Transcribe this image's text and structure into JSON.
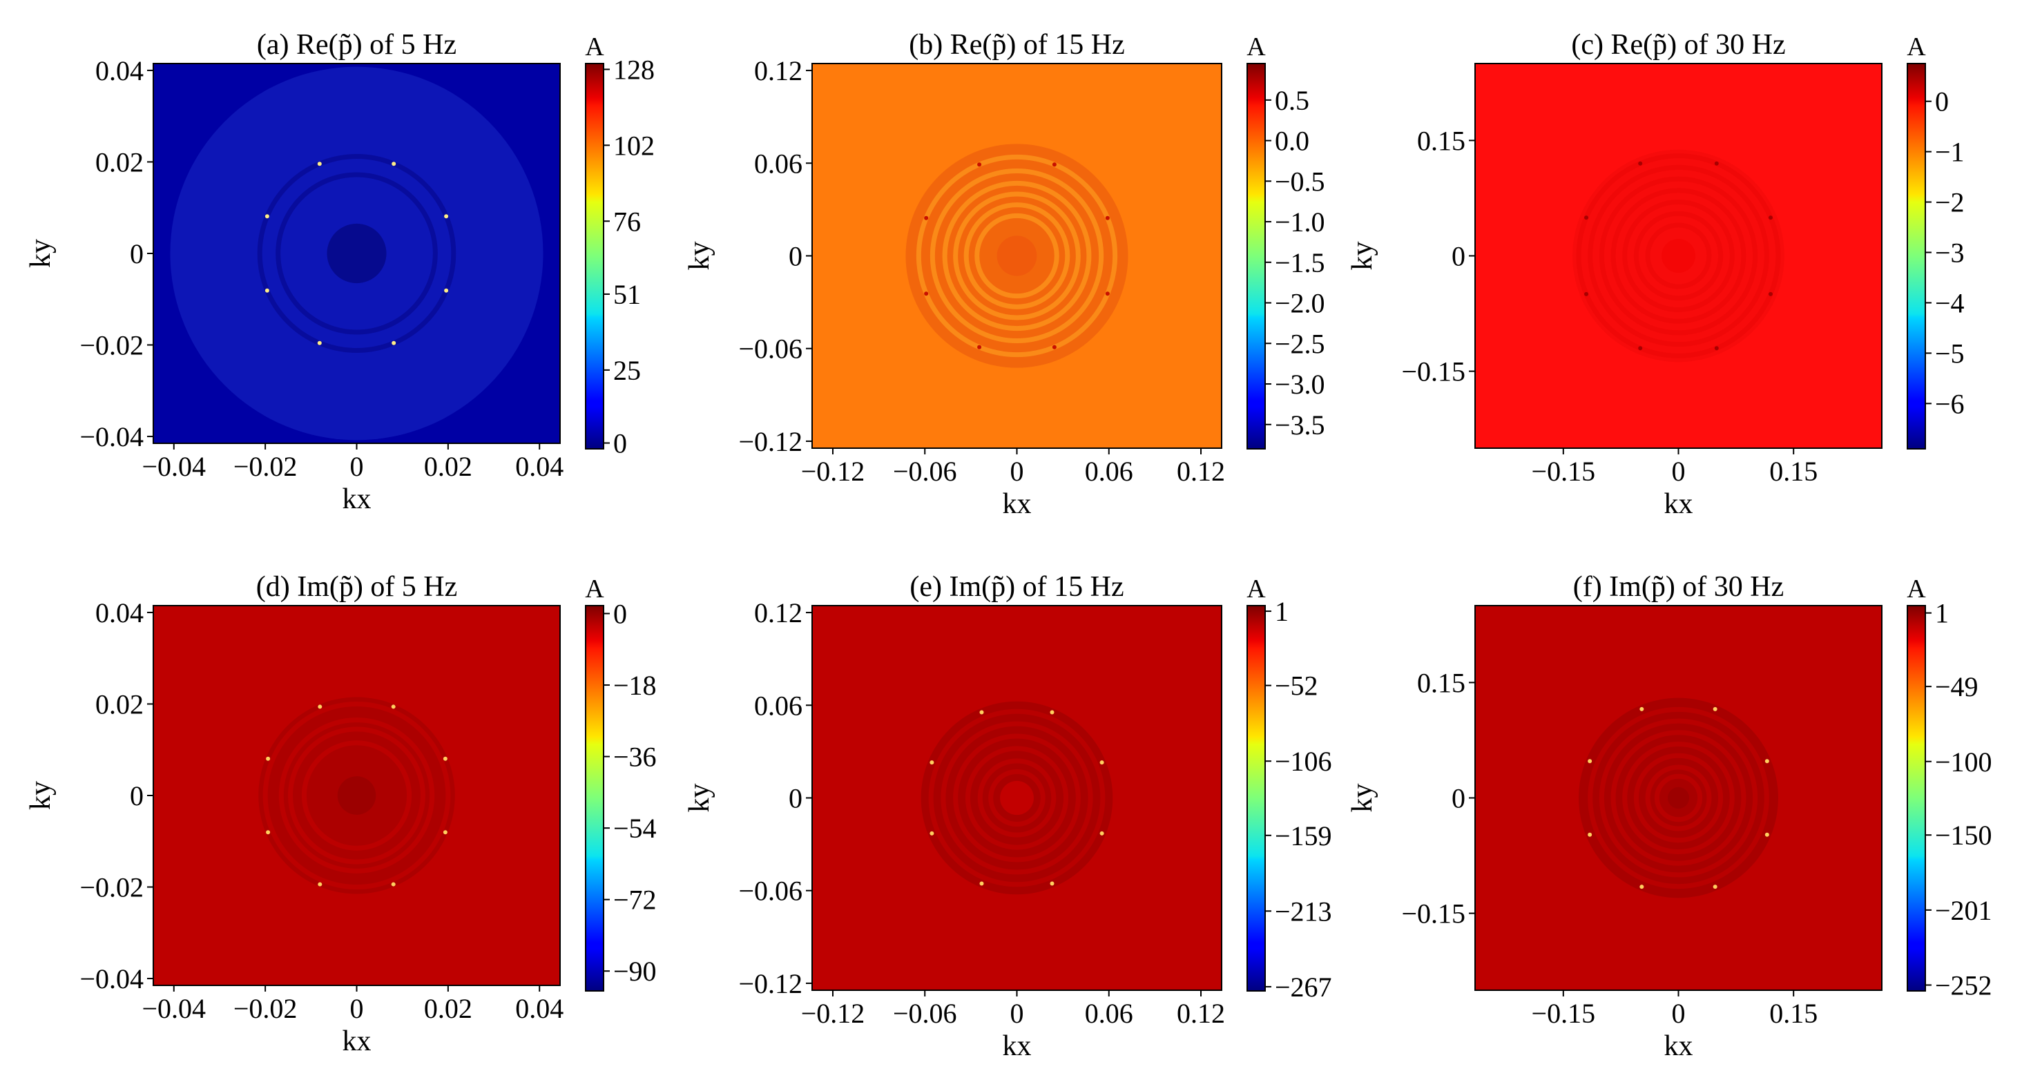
{
  "chart_data": [
    {
      "type": "heatmap",
      "title": "(a) Re(p̃̃) of 5 Hz",
      "xlabel": "kx",
      "ylabel": "ky",
      "xticks": [
        "−0.04",
        "−0.02",
        "0",
        "0.02",
        "0.04"
      ],
      "xtick_values": [
        -0.04,
        -0.02,
        0,
        0.02,
        0.04
      ],
      "yticks": [
        "0.04",
        "0.02",
        "0",
        "−0.02",
        "−0.04"
      ],
      "ytick_values": [
        0.04,
        0.02,
        0,
        -0.02,
        -0.04
      ],
      "xlim": [
        -0.0445,
        0.0445
      ],
      "ylim": [
        -0.0415,
        0.0415
      ],
      "colorbar": {
        "label": "A",
        "ticks": [
          "128",
          "102",
          "76",
          "51",
          "25",
          "0"
        ],
        "tick_values": [
          128,
          102,
          76,
          51,
          25,
          0
        ],
        "range": [
          -2,
          130
        ]
      },
      "background_color": "#0000a4",
      "pattern": {
        "outer_disc_radius": 0.0408,
        "outer_disc_color": "#0d16b6",
        "rings": [
          0.0212,
          0.0172
        ],
        "ring_color": "#080c9c",
        "center_radius": 0.0065,
        "center_color": "#060a8e",
        "spot_radius": 0.0212,
        "spot_color": "#ffee88"
      }
    },
    {
      "type": "heatmap",
      "title": "(b) Re(p̃̃) of 15 Hz",
      "xlabel": "kx",
      "ylabel": "ky",
      "xticks": [
        "−0.12",
        "−0.06",
        "0",
        "0.06",
        "0.12"
      ],
      "xtick_values": [
        -0.12,
        -0.06,
        0,
        0.06,
        0.12
      ],
      "yticks": [
        "0.12",
        "0.06",
        "0",
        "−0.06",
        "−0.12"
      ],
      "ytick_values": [
        0.12,
        0.06,
        0,
        -0.06,
        -0.12
      ],
      "xlim": [
        -0.1335,
        0.1335
      ],
      "ylim": [
        -0.1245,
        0.1245
      ],
      "colorbar": {
        "label": "A",
        "ticks": [
          "0.5",
          "0.0",
          "−0.5",
          "−1.0",
          "−1.5",
          "−2.0",
          "−2.5",
          "−3.0",
          "−3.5"
        ],
        "tick_values": [
          0.5,
          0.0,
          -0.5,
          -1.0,
          -1.5,
          -2.0,
          -2.5,
          -3.0,
          -3.5
        ],
        "range": [
          -3.8,
          0.95
        ]
      },
      "background_color": "#ff7b0c",
      "pattern": {
        "outer_disc_radius": 0.0725,
        "outer_disc_color": "#f2660c",
        "rings": [
          0.064,
          0.055,
          0.047,
          0.04,
          0.033,
          0.026
        ],
        "ring_color": "#fa8a18",
        "center_radius": 0.013,
        "center_color": "#f05a0c",
        "spot_radius": 0.064,
        "spot_color": "#c81000"
      }
    },
    {
      "type": "heatmap",
      "title": "(c) Re(p̃̃) of 30 Hz",
      "xlabel": "kx",
      "ylabel": "ky",
      "xticks": [
        "−0.15",
        "0",
        "0.15"
      ],
      "xtick_values": [
        -0.15,
        0,
        0.15
      ],
      "yticks": [
        "0.15",
        "0",
        "−0.15"
      ],
      "ytick_values": [
        0.15,
        0,
        -0.15
      ],
      "xlim": [
        -0.265,
        0.265
      ],
      "ylim": [
        -0.25,
        0.25
      ],
      "colorbar": {
        "label": "A",
        "ticks": [
          "0",
          "−1",
          "−2",
          "−3",
          "−4",
          "−5",
          "−6"
        ],
        "tick_values": [
          0,
          -1,
          -2,
          -3,
          -4,
          -5,
          -6
        ],
        "range": [
          -6.9,
          0.75
        ]
      },
      "background_color": "#ff0d0d",
      "pattern": {
        "outer_disc_radius": 0.138,
        "outer_disc_color": "#f70b0b",
        "rings": [
          0.13,
          0.115,
          0.1,
          0.085,
          0.07,
          0.055,
          0.04
        ],
        "ring_color": "#f00808",
        "center_radius": 0.022,
        "center_color": "#f40606",
        "spot_radius": 0.13,
        "spot_color": "#a80000"
      }
    },
    {
      "type": "heatmap",
      "title": "(d) Im(p̃̃) of 5 Hz",
      "xlabel": "kx",
      "ylabel": "ky",
      "xticks": [
        "−0.04",
        "−0.02",
        "0",
        "0.02",
        "0.04"
      ],
      "xtick_values": [
        -0.04,
        -0.02,
        0,
        0.02,
        0.04
      ],
      "yticks": [
        "0.04",
        "0.02",
        "0",
        "−0.02",
        "−0.04"
      ],
      "ytick_values": [
        0.04,
        0.02,
        0,
        -0.02,
        -0.04
      ],
      "xlim": [
        -0.0445,
        0.0445
      ],
      "ylim": [
        -0.0415,
        0.0415
      ],
      "colorbar": {
        "label": "A",
        "ticks": [
          "0",
          "−18",
          "−36",
          "−54",
          "−72",
          "−90"
        ],
        "tick_values": [
          0,
          -18,
          -36,
          -54,
          -72,
          -90
        ],
        "range": [
          -95,
          2
        ]
      },
      "background_color": "#be0000",
      "pattern": {
        "outer_disc_radius": 0.0215,
        "outer_disc_color": "#ac0000",
        "rings": [
          0.02,
          0.0165,
          0.0145,
          0.0115
        ],
        "ring_color": "#bb0000",
        "center_radius": 0.0042,
        "center_color": "#9c0000",
        "spot_radius": 0.021,
        "spot_color": "#ffd060"
      }
    },
    {
      "type": "heatmap",
      "title": "(e) Im(p̃̃) of 15 Hz",
      "xlabel": "kx",
      "ylabel": "ky",
      "xticks": [
        "−0.12",
        "−0.06",
        "0",
        "0.06",
        "0.12"
      ],
      "xtick_values": [
        -0.12,
        -0.06,
        0,
        0.06,
        0.12
      ],
      "yticks": [
        "0.12",
        "0.06",
        "0",
        "−0.06",
        "−0.12"
      ],
      "ytick_values": [
        0.12,
        0.06,
        0,
        -0.06,
        -0.12
      ],
      "xlim": [
        -0.1335,
        0.1335
      ],
      "ylim": [
        -0.1245,
        0.1245
      ],
      "colorbar": {
        "label": "A",
        "ticks": [
          "1",
          "−52",
          "−106",
          "−159",
          "−213",
          "−267"
        ],
        "tick_values": [
          1,
          -52,
          -106,
          -159,
          -213,
          -267
        ],
        "range": [
          -270,
          5
        ]
      },
      "background_color": "#be0000",
      "pattern": {
        "outer_disc_radius": 0.0625,
        "outer_disc_color": "#a80000",
        "rings": [
          0.056,
          0.048,
          0.04,
          0.032,
          0.024,
          0.017
        ],
        "ring_color": "#b80000",
        "center_radius": 0.011,
        "center_color": "#c20000",
        "spot_radius": 0.06,
        "spot_color": "#ffd060"
      }
    },
    {
      "type": "heatmap",
      "title": "(f) Im(p̃̃) of 30 Hz",
      "xlabel": "kx",
      "ylabel": "ky",
      "xticks": [
        "−0.15",
        "0",
        "0.15"
      ],
      "xtick_values": [
        -0.15,
        0,
        0.15
      ],
      "yticks": [
        "0.15",
        "0",
        "−0.15"
      ],
      "ytick_values": [
        0.15,
        0,
        -0.15
      ],
      "xlim": [
        -0.265,
        0.265
      ],
      "ylim": [
        -0.25,
        0.25
      ],
      "colorbar": {
        "label": "A",
        "ticks": [
          "1",
          "−49",
          "−100",
          "−150",
          "−201",
          "−252"
        ],
        "tick_values": [
          1,
          -49,
          -100,
          -150,
          -201,
          -252
        ],
        "range": [
          -256,
          6
        ]
      },
      "background_color": "#be0000",
      "pattern": {
        "outer_disc_radius": 0.13,
        "outer_disc_color": "#a80000",
        "rings": [
          0.115,
          0.1,
          0.085,
          0.07,
          0.055,
          0.04,
          0.028
        ],
        "ring_color": "#b80000",
        "center_radius": 0.014,
        "center_color": "#9c0000",
        "spot_radius": 0.125,
        "spot_color": "#ffd060"
      }
    }
  ]
}
